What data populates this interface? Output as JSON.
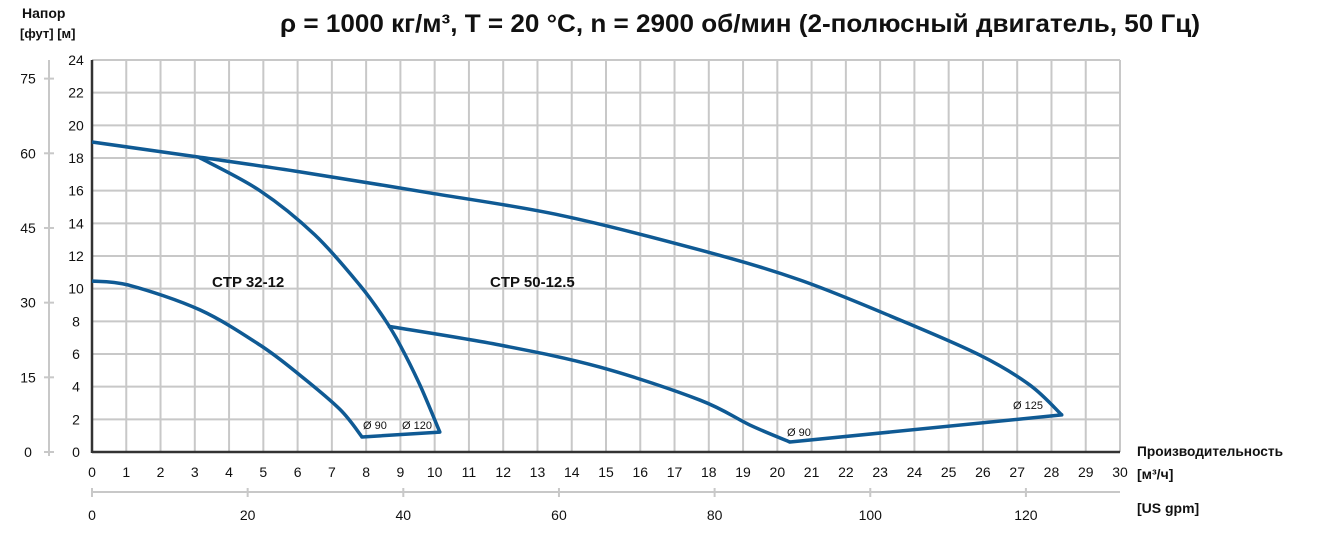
{
  "chart_data": {
    "type": "line",
    "title": "ρ = 1000 кг/м³, T = 20 °C, n = 2900 об/мин (2-полюсный двигатель, 50 Гц)",
    "ylabel": "Напор",
    "ylabel_units": "[фут] [м]",
    "xlabel": "Производительность",
    "xlabel_units": "[м³/ч]",
    "x2label_units": "[US gpm]",
    "xlim": [
      0,
      30
    ],
    "ylim": [
      0,
      24
    ],
    "grid": true,
    "x_ticks": [
      "0",
      "1",
      "2",
      "3",
      "4",
      "5",
      "6",
      "7",
      "8",
      "9",
      "10",
      "11",
      "12",
      "13",
      "14",
      "15",
      "16",
      "17",
      "18",
      "19",
      "20",
      "21",
      "22",
      "23",
      "24",
      "25",
      "26",
      "27",
      "28",
      "29",
      "30"
    ],
    "y_ticks": [
      "0",
      "2",
      "4",
      "6",
      "8",
      "10",
      "12",
      "14",
      "16",
      "18",
      "20",
      "22",
      "24"
    ],
    "ft_ticks": [
      "0",
      "15",
      "30",
      "45",
      "60",
      "75"
    ],
    "gpm_ticks": [
      "0",
      "20",
      "40",
      "60",
      "80",
      "100",
      "120"
    ],
    "line_color": "#0f5a94",
    "series": [
      {
        "label": "Ø 90",
        "model": "CTP 32-12",
        "x": [
          0,
          1.1,
          3.15,
          4.9,
          6.07,
          7.24,
          7.88
        ],
        "y": [
          10.47,
          10.2,
          8.7,
          6.55,
          4.7,
          2.6,
          0.92
        ]
      },
      {
        "label": "Ø 120",
        "model": "CTP 32-12",
        "x": [
          3.1,
          4.9,
          6.5,
          7.82,
          8.55,
          8.99,
          9.57,
          10.15
        ],
        "y": [
          18.06,
          16.0,
          13.3,
          10.2,
          8.1,
          6.55,
          4.1,
          1.22
        ]
      },
      {
        "label": "Ø 90",
        "model": "CTP 50-12.5",
        "x": [
          8.64,
          11.9,
          14.82,
          17.74,
          19.2,
          20.37
        ],
        "y": [
          7.7,
          6.55,
          5.2,
          3.18,
          1.65,
          0.61
        ]
      },
      {
        "label": "Ø 125",
        "model": "CTP 50-12.5",
        "x": [
          0,
          3.1,
          6.07,
          9.86,
          13.66,
          17.74,
          20.66,
          23.58,
          25.9,
          27.37,
          28.3
        ],
        "y": [
          18.98,
          18.06,
          17.15,
          15.86,
          14.5,
          12.37,
          10.53,
          8.08,
          5.94,
          4.1,
          2.27
        ]
      }
    ],
    "boundary_lines": [
      {
        "x": [
          7.88,
          10.15
        ],
        "y": [
          0.92,
          1.22
        ]
      },
      {
        "x": [
          20.37,
          28.3
        ],
        "y": [
          0.61,
          2.27
        ]
      }
    ],
    "annotations": [
      "CTP 32-12",
      "CTP 50-12.5"
    ]
  }
}
